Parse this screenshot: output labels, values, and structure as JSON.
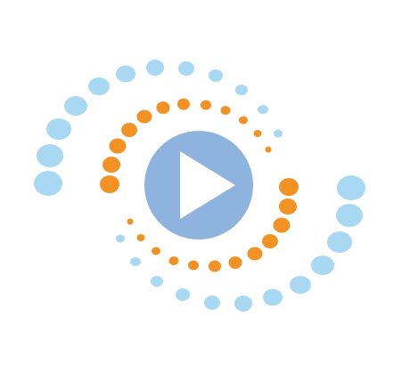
{
  "player": {
    "icon": "play-icon",
    "accessible_label": ""
  },
  "colors": {
    "outer_dots": "#a8d8f2",
    "inner_dots": "#f29224",
    "play_circle": "#8eb3df",
    "play_triangle": "#ffffff",
    "background": "#ffffff"
  }
}
